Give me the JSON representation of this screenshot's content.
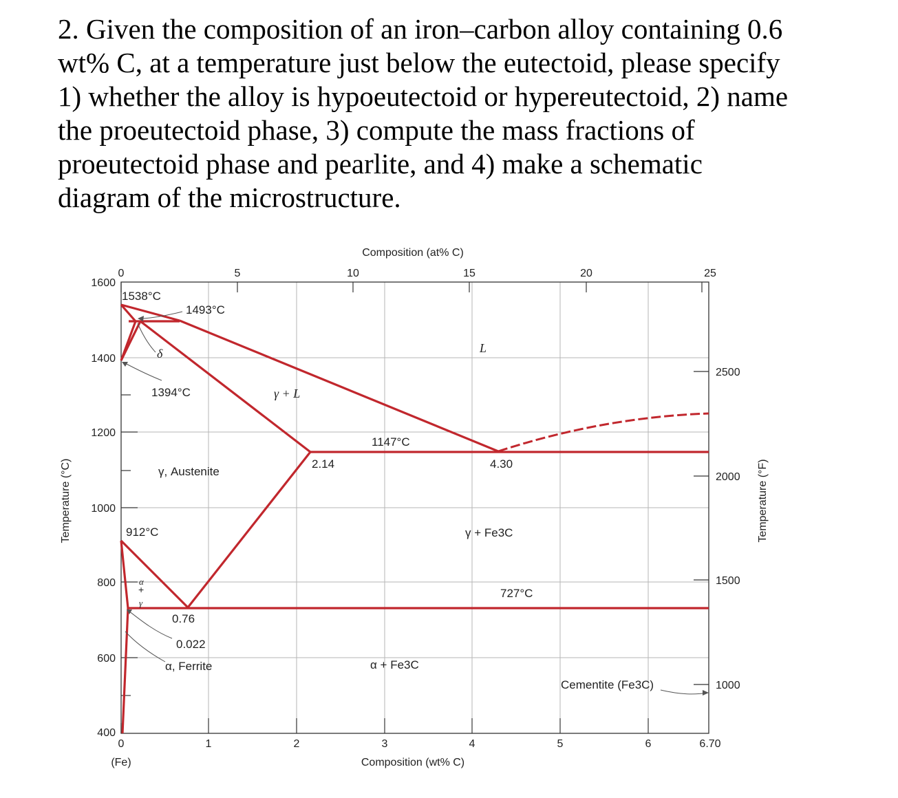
{
  "question": {
    "lines": [
      "2. Given the composition of an iron–carbon alloy containing 0.6",
      "wt% C, at a temperature just below the eutectoid, please specify",
      "1) whether the alloy is hypoeutectoid or hypereutectoid, 2) name",
      "the proeutectoid phase, 3) compute the mass fractions of",
      "proeutectoid phase and pearlite, and 4) make a schematic",
      "diagram of the microstructure."
    ]
  },
  "diagram": {
    "top_axis_title": "Composition (at% C)",
    "top_ticks": [
      "0",
      "5",
      "10",
      "15",
      "20",
      "25"
    ],
    "bottom_axis_title": "Composition (wt% C)",
    "bottom_ticks": [
      "0",
      "1",
      "2",
      "3",
      "4",
      "5",
      "6",
      "6.70"
    ],
    "bottom_fe_label": "(Fe)",
    "left_axis_title": "Temperature (°C)",
    "left_ticks": [
      "1600",
      "1400",
      "1200",
      "1000",
      "800",
      "600",
      "400"
    ],
    "right_axis_title": "Temperature (°F)",
    "right_ticks": [
      "2500",
      "2000",
      "1500",
      "1000"
    ],
    "labels": {
      "t1538": "1538°C",
      "t1493": "1493°C",
      "delta": "δ",
      "t1394": "1394°C",
      "gamma_l": "γ + L",
      "liquid": "L",
      "t1147": "1147°C",
      "c214": "2.14",
      "c430": "4.30",
      "austenite": "γ, Austenite",
      "t912": "912°C",
      "gamma_fe3c": "γ + Fe3C",
      "t727": "727°C",
      "alpha_small": "α",
      "plus_small": "+",
      "gamma_small": "γ",
      "c076": "0.76",
      "c0022": "0.022",
      "ferrite": "α, Ferrite",
      "alpha_fe3c": "α + Fe3C",
      "cementite": "Cementite (Fe3C)"
    },
    "colors": {
      "phase_line": "#c1272d",
      "grid": "#b5b5b5",
      "frame": "#333333"
    }
  }
}
